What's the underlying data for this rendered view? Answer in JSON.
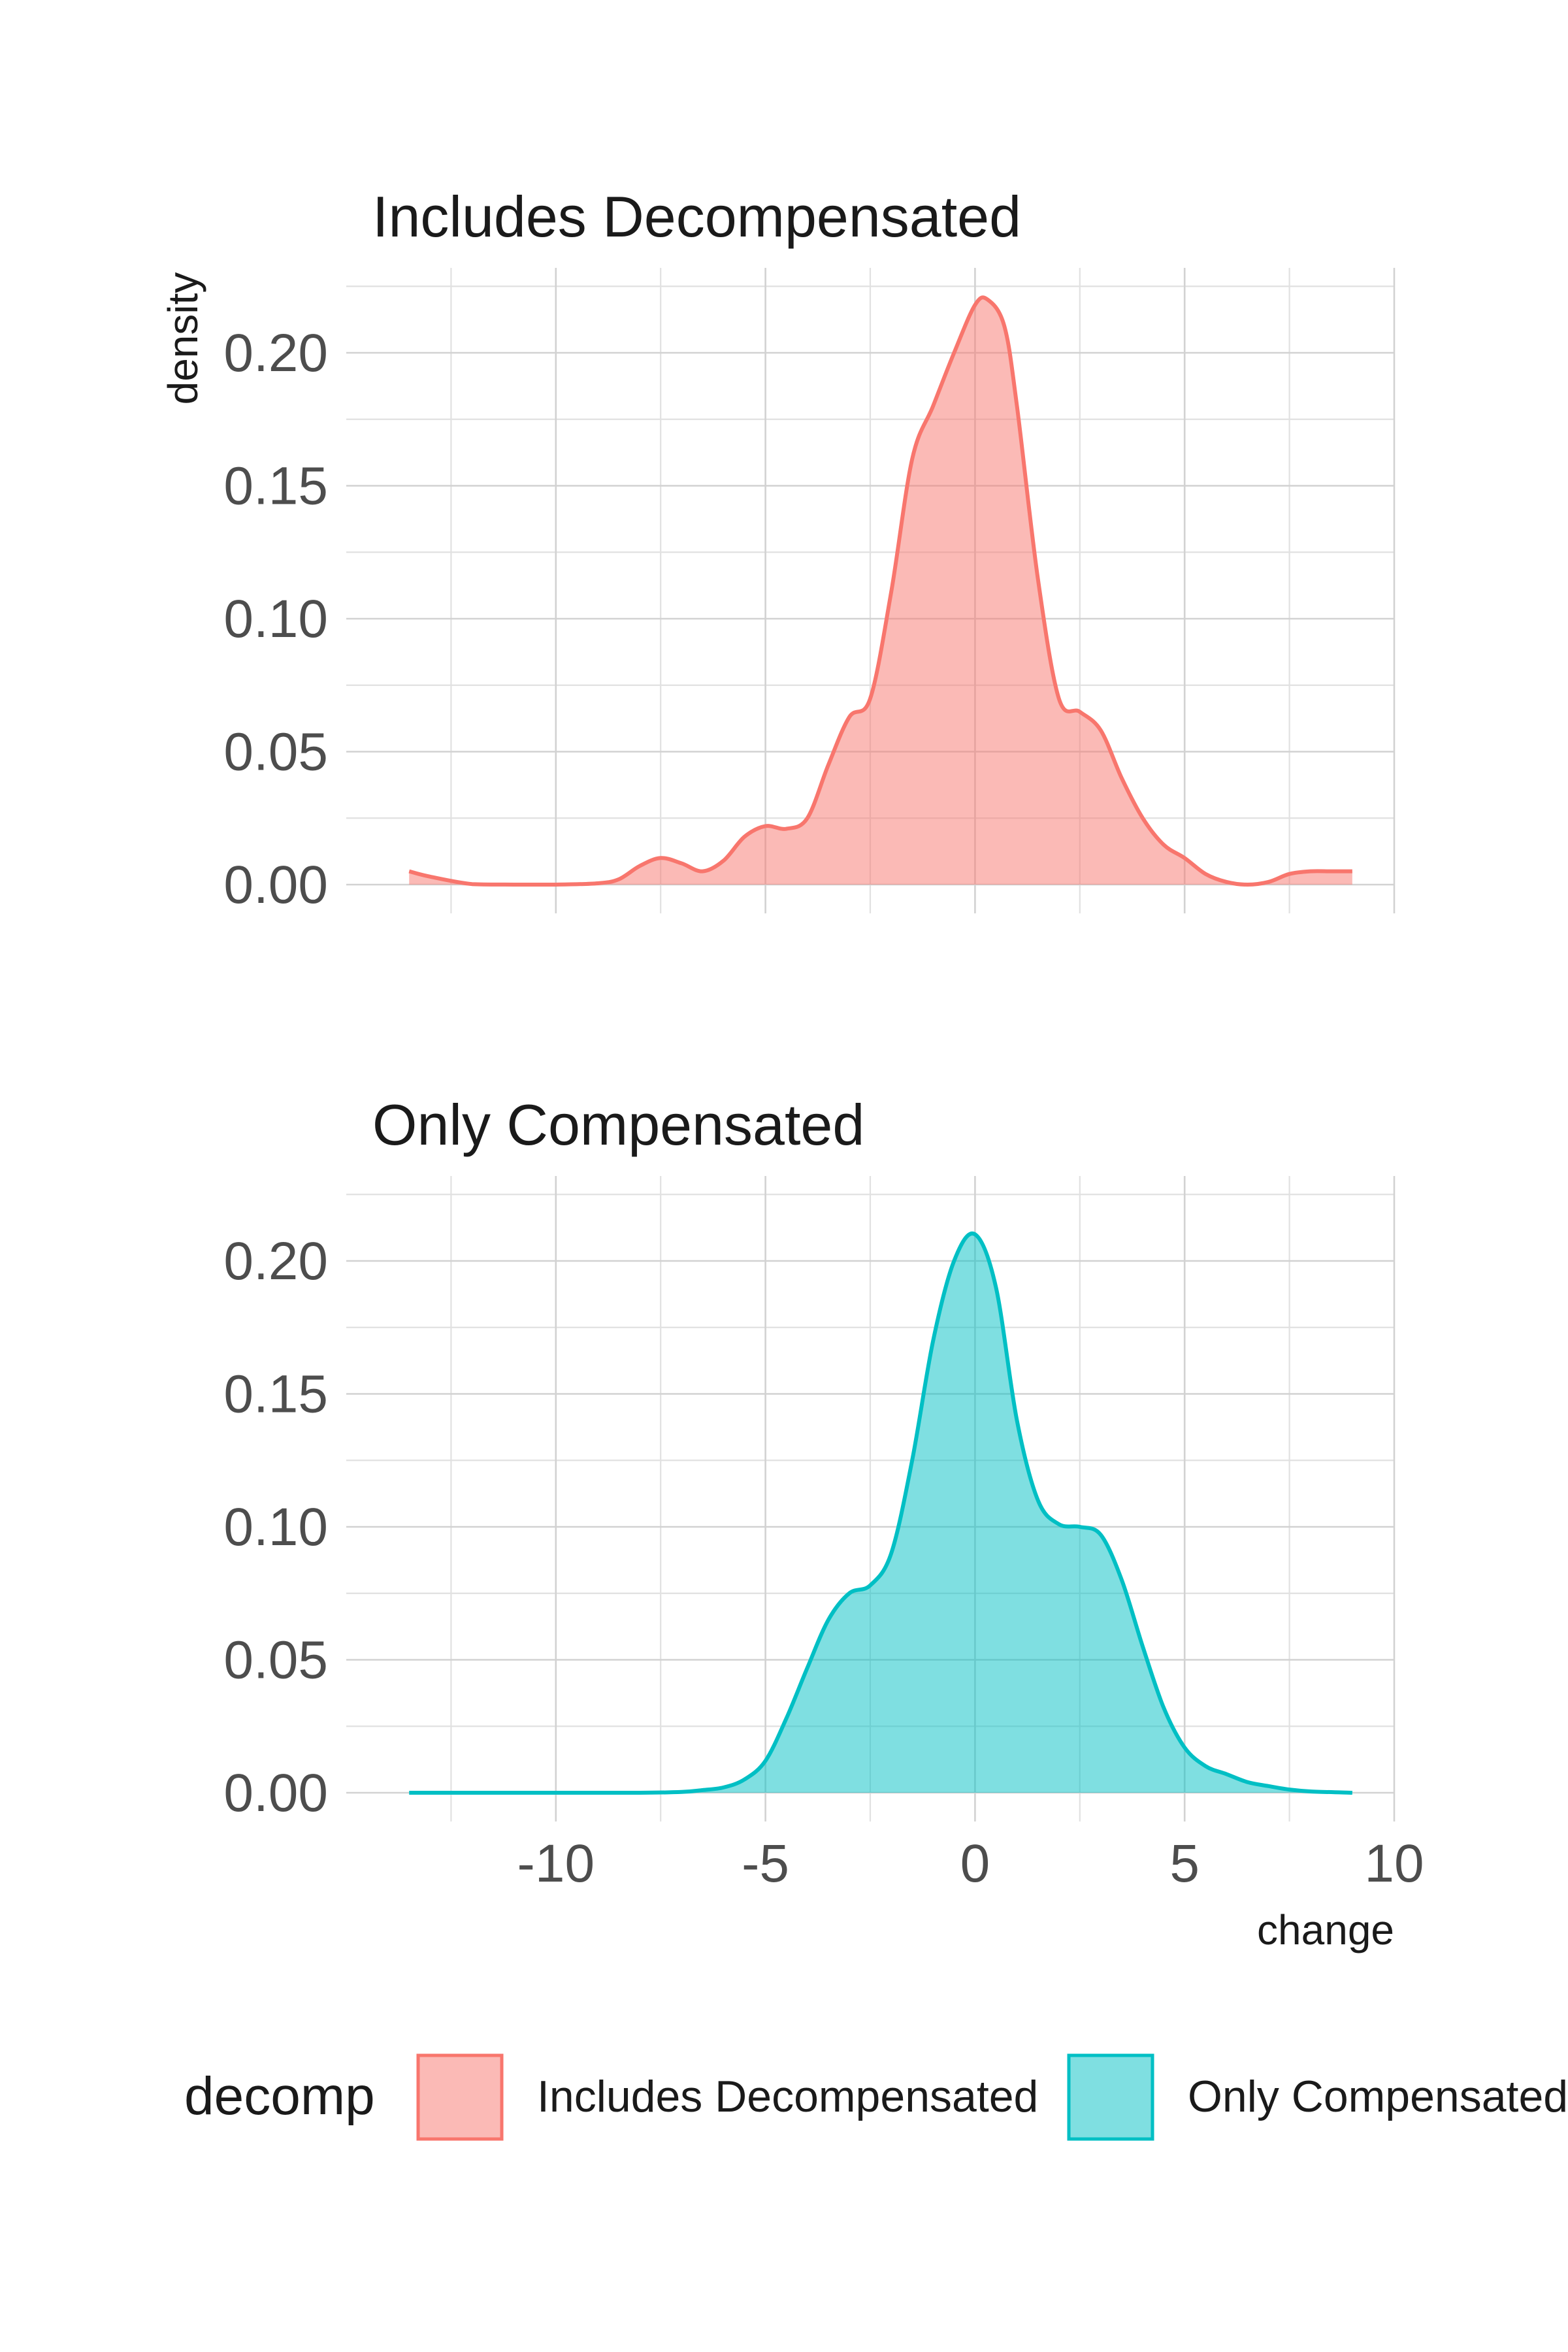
{
  "chart_data": {
    "type": "area",
    "subtype": "density",
    "facet_by": "decomp",
    "xlabel": "change",
    "ylabel": "density",
    "xlim": [
      -15,
      10
    ],
    "ylim": [
      0,
      0.22
    ],
    "x_ticks": [
      -10,
      -5,
      0,
      5,
      10
    ],
    "x_tick_labels": [
      "-10",
      "-5",
      "0",
      "5",
      "10"
    ],
    "y_ticks": [
      0,
      0.05,
      0.1,
      0.15,
      0.2
    ],
    "y_tick_labels": [
      "0.00",
      "0.05",
      "0.10",
      "0.15",
      "0.20"
    ],
    "grid": true,
    "legend": {
      "position": "bottom",
      "title": "decomp",
      "entries": [
        "Includes Decompensated",
        "Only Compensated"
      ]
    },
    "panels": [
      {
        "title": "Includes Decompensated",
        "series": [
          {
            "name": "Includes Decompensated",
            "color": "#F8766D",
            "fill": "#F8766D",
            "x": [
              -13.5,
              -13,
              -12,
              -11,
              -10,
              -9,
              -8.5,
              -8,
              -7.5,
              -7,
              -6.5,
              -6,
              -5.5,
              -5,
              -4.5,
              -4,
              -3.5,
              -3,
              -2.5,
              -2,
              -1.5,
              -1,
              -0.5,
              0,
              0.3,
              0.7,
              1,
              1.5,
              2,
              2.5,
              3,
              3.5,
              4,
              4.5,
              5,
              5.5,
              6,
              6.5,
              7,
              7.5,
              8,
              8.5,
              9
            ],
            "y": [
              0.005,
              0.003,
              0.0002,
              0.0,
              0.0,
              0.0005,
              0.002,
              0.007,
              0.01,
              0.008,
              0.005,
              0.009,
              0.018,
              0.022,
              0.021,
              0.025,
              0.045,
              0.063,
              0.07,
              0.11,
              0.16,
              0.18,
              0.2,
              0.218,
              0.22,
              0.21,
              0.18,
              0.115,
              0.07,
              0.065,
              0.058,
              0.04,
              0.025,
              0.015,
              0.01,
              0.004,
              0.001,
              0.0,
              0.001,
              0.004,
              0.005,
              0.005,
              0.005
            ]
          }
        ]
      },
      {
        "title": "Only Compensated",
        "series": [
          {
            "name": "Only Compensated",
            "color": "#00BFC4",
            "fill": "#00BFC4",
            "x": [
              -13.5,
              -12,
              -10,
              -8,
              -7,
              -6.5,
              -6,
              -5.5,
              -5,
              -4.5,
              -4,
              -3.5,
              -3,
              -2.5,
              -2,
              -1.5,
              -1,
              -0.5,
              0,
              0.5,
              1,
              1.5,
              2,
              2.5,
              3,
              3.5,
              4,
              4.5,
              5,
              5.5,
              6,
              6.5,
              7,
              7.5,
              8,
              9
            ],
            "y": [
              0.0,
              0.0,
              0.0,
              0.0,
              0.0003,
              0.001,
              0.002,
              0.005,
              0.012,
              0.028,
              0.047,
              0.065,
              0.075,
              0.078,
              0.09,
              0.125,
              0.17,
              0.2,
              0.21,
              0.19,
              0.14,
              0.11,
              0.101,
              0.1,
              0.097,
              0.08,
              0.055,
              0.032,
              0.017,
              0.01,
              0.007,
              0.004,
              0.0025,
              0.0012,
              0.0005,
              0.0
            ]
          }
        ]
      }
    ]
  }
}
